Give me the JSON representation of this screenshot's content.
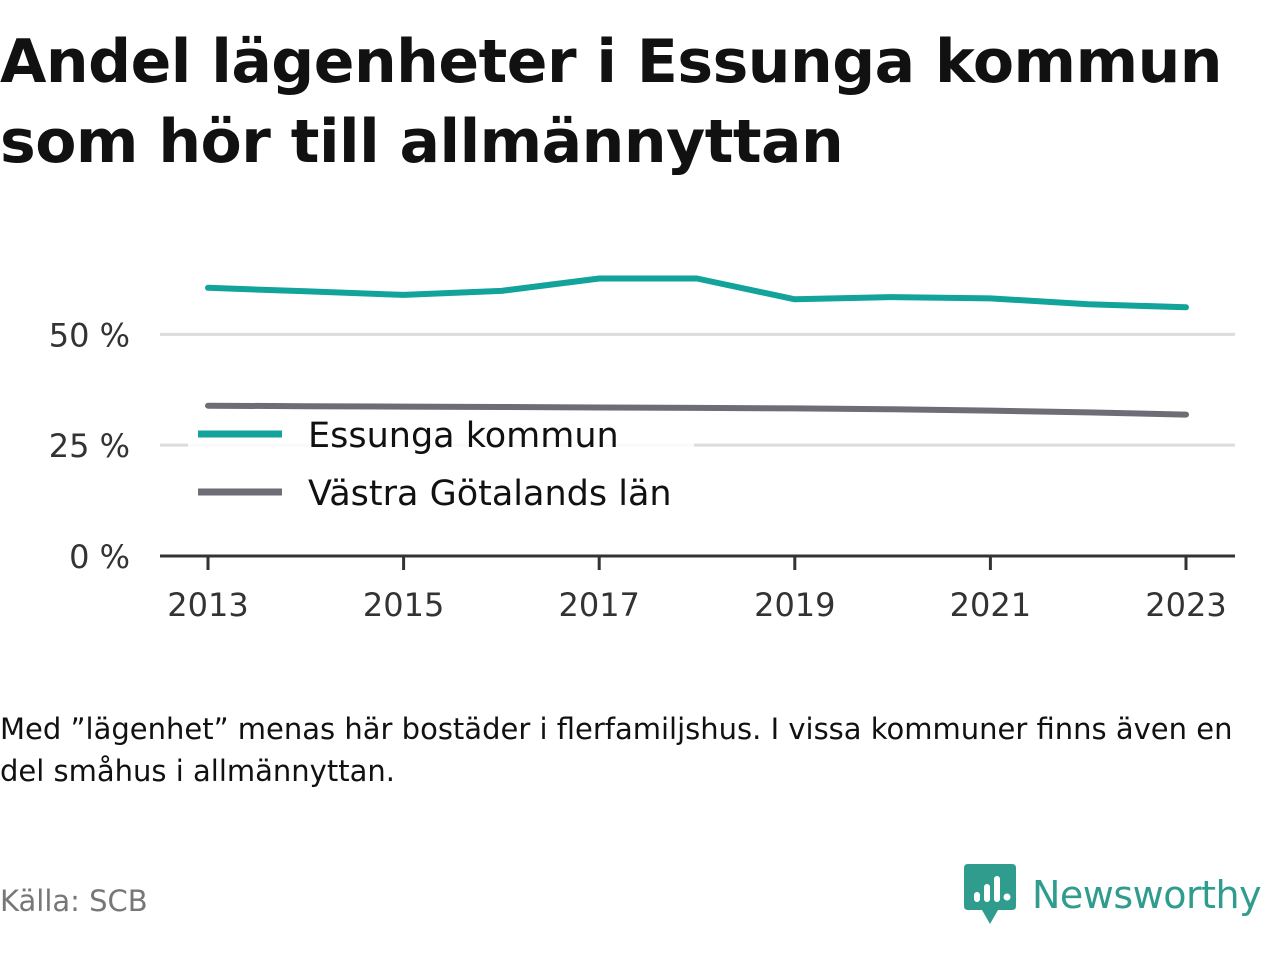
{
  "chart_data": {
    "type": "line",
    "title": "Andel lägenheter i Essunga kommun som hör till allmännyttan",
    "x": [
      2013,
      2014,
      2015,
      2016,
      2017,
      2018,
      2019,
      2020,
      2021,
      2022,
      2023
    ],
    "x_ticks": [
      2013,
      2015,
      2017,
      2019,
      2021,
      2023
    ],
    "x_tick_labels": [
      "2013",
      "2015",
      "2017",
      "2019",
      "2021",
      "2023"
    ],
    "y_ticks": [
      0,
      25,
      50
    ],
    "y_tick_labels": [
      "0 %",
      "25 %",
      "50 %"
    ],
    "ylim": [
      0,
      60
    ],
    "grid": true,
    "legend_placement": "middle-left",
    "series": [
      {
        "name": "Essunga kommun",
        "color": "#12a39a",
        "values": [
          60.5,
          59.7,
          58.9,
          59.8,
          62.6,
          62.6,
          57.9,
          58.4,
          58.1,
          56.8,
          56.1
        ]
      },
      {
        "name": "Västra Götalands län",
        "color": "#6d6e75",
        "values": [
          33.9,
          33.8,
          33.7,
          33.6,
          33.5,
          33.4,
          33.3,
          33.1,
          32.8,
          32.4,
          31.9
        ]
      }
    ]
  },
  "note": "Med ”lägenhet” menas här bostäder i flerfamiljshus. I vissa kommuner finns även en del småhus i allmännyttan.",
  "source": "Källa: SCB",
  "brand": {
    "name": "Newsworthy",
    "logo_icon": "newsworthy-logo-icon",
    "color": "#2f9c8e"
  }
}
